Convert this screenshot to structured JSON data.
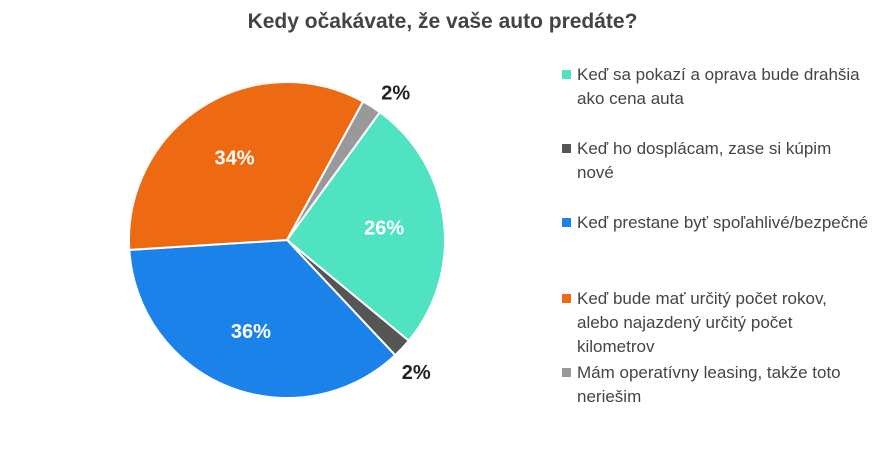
{
  "chart_data": {
    "type": "pie",
    "title": "Kedy očakávate, že vaše auto predáte?",
    "slices": [
      {
        "label": "Keď sa pokazí a oprava bude drahšia ako cena auta",
        "value": 26,
        "value_label": "26%",
        "color": "#50E3C2"
      },
      {
        "label": "Keď ho dosplácam, zase si kúpim nové",
        "value": 2,
        "value_label": "2%",
        "color": "#555555"
      },
      {
        "label": "Keď prestane byť spoľahlivé/bezpečné",
        "value": 36,
        "value_label": "36%",
        "color": "#1A82E8"
      },
      {
        "label": "Keď bude mať určitý počet rokov, alebo najazdený určitý počet kilometrov",
        "value": 34,
        "value_label": "34%",
        "color": "#EE6A12"
      },
      {
        "label": "Mám operatívny leasing, takže toto neriešim",
        "value": 2,
        "value_label": "2%",
        "color": "#999999"
      }
    ],
    "legend_position": "right"
  }
}
